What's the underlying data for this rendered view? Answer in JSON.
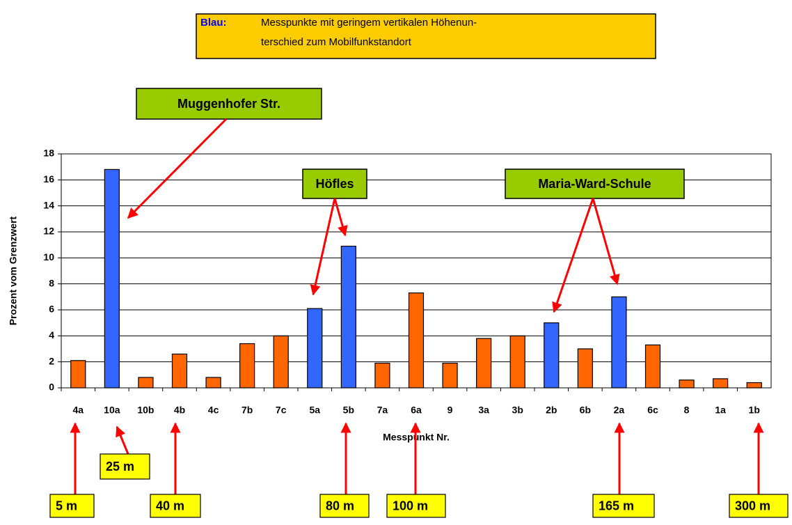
{
  "chart_data": {
    "type": "bar",
    "legend_label": "Blau:",
    "legend_text": [
      "Messpunkte mit geringem vertikalen Höhenun-",
      "terschied zum Mobilfunkstandort"
    ],
    "xlabel": "Messpunkt Nr.",
    "ylabel": "Prozent vom Grenzwert",
    "categories": [
      "4a",
      "10a",
      "10b",
      "4b",
      "4c",
      "7b",
      "7c",
      "5a",
      "5b",
      "7a",
      "6a",
      "9",
      "3a",
      "3b",
      "2b",
      "6b",
      "2a",
      "6c",
      "8",
      "1a",
      "1b"
    ],
    "values": [
      2.1,
      16.8,
      0.8,
      2.6,
      0.8,
      3.4,
      4.0,
      6.1,
      10.9,
      1.9,
      7.3,
      1.9,
      3.8,
      4.0,
      5.0,
      3.0,
      7.0,
      3.3,
      0.6,
      0.7,
      0.4
    ],
    "colors": [
      "#ff6600",
      "#3366ff",
      "#ff6600",
      "#ff6600",
      "#ff6600",
      "#ff6600",
      "#ff6600",
      "#3366ff",
      "#3366ff",
      "#ff6600",
      "#ff6600",
      "#ff6600",
      "#ff6600",
      "#ff6600",
      "#3366ff",
      "#ff6600",
      "#3366ff",
      "#ff6600",
      "#ff6600",
      "#ff6600",
      "#ff6600"
    ],
    "ylim": [
      0,
      18
    ],
    "yticks": [
      0,
      2,
      4,
      6,
      8,
      10,
      12,
      14,
      16,
      18
    ],
    "grid": true,
    "callouts": [
      "Muggenhofer Str.",
      "Höfles",
      "Maria-Ward-Schule"
    ],
    "distances": [
      "5 m",
      "25 m",
      "40 m",
      "80 m",
      "100 m",
      "165 m",
      "300 m"
    ]
  }
}
